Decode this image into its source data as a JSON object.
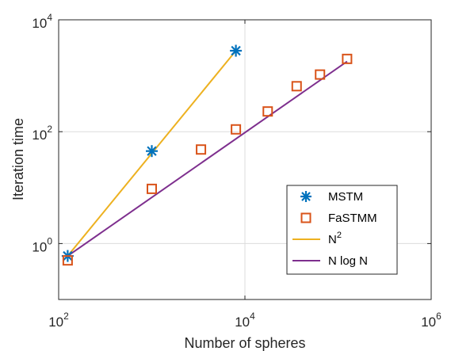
{
  "chart_data": {
    "type": "scatter",
    "title": "",
    "xlabel": "Number of spheres",
    "ylabel": "Iteration time",
    "xscale": "log",
    "yscale": "log",
    "xlim": [
      100,
      1000000
    ],
    "ylim": [
      0.1,
      10000
    ],
    "grid": true,
    "legend_position": "lower-right",
    "x_ticks": [
      {
        "base": "10",
        "exp": "2"
      },
      {
        "base": "10",
        "exp": "4"
      },
      {
        "base": "10",
        "exp": "6"
      }
    ],
    "y_ticks": [
      {
        "base": "10",
        "exp": "0"
      },
      {
        "base": "10",
        "exp": "2"
      },
      {
        "base": "10",
        "exp": "4"
      }
    ],
    "series": [
      {
        "name": "MSTM",
        "kind": "marker",
        "marker": "asterisk",
        "color": "#0072BD",
        "x": [
          125,
          1000,
          8000
        ],
        "y": [
          0.6,
          45,
          2800
        ]
      },
      {
        "name": "FaSTMM",
        "kind": "marker",
        "marker": "square",
        "color": "#D95319",
        "x": [
          125,
          1000,
          3375,
          8000,
          17576,
          35937,
          64000,
          125000
        ],
        "y": [
          0.5,
          9.5,
          48,
          110,
          230,
          650,
          1050,
          2000
        ]
      },
      {
        "name": "N",
        "name_sup": "2",
        "kind": "line",
        "color": "#EDB120",
        "x": [
          125,
          8000
        ],
        "y": [
          0.6,
          2800
        ]
      },
      {
        "name": "N log N",
        "kind": "line",
        "color": "#7E2F8E",
        "x": [
          125,
          125000
        ],
        "y": [
          0.6,
          1800
        ]
      }
    ]
  }
}
